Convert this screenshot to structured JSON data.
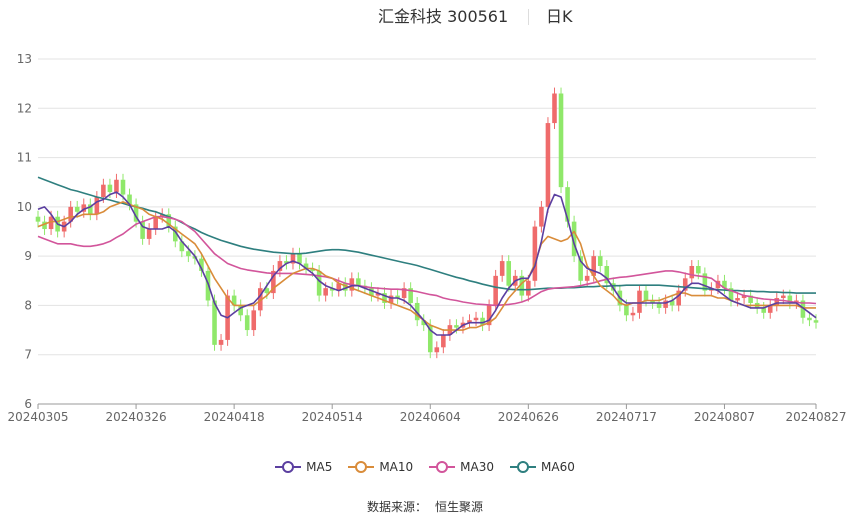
{
  "header": {
    "title": "汇金科技 300561",
    "period": "日K"
  },
  "legend": [
    {
      "label": "MA5",
      "color": "#5b3fa0"
    },
    {
      "label": "MA10",
      "color": "#d98c3a"
    },
    {
      "label": "MA30",
      "color": "#d2559b"
    },
    {
      "label": "MA60",
      "color": "#2e7f7f"
    }
  ],
  "source": {
    "label": "数据来源：",
    "value": "恒生聚源"
  },
  "colors": {
    "up": "#ef6b6b",
    "down": "#8fe86a",
    "grid": "#e3e3e3",
    "axis": "#999999"
  },
  "chart_data": {
    "type": "candlestick",
    "title": "汇金科技 300561",
    "y_range": [
      6,
      13
    ],
    "y_ticks": [
      6,
      7,
      8,
      9,
      10,
      11,
      12,
      13
    ],
    "x_tick_labels": [
      "20240305",
      "20240326",
      "20240418",
      "20240514",
      "20240604",
      "20240626",
      "20240717",
      "20240807",
      "20240827"
    ],
    "x_tick_indices": [
      0,
      15,
      30,
      45,
      60,
      75,
      90,
      105,
      119
    ],
    "close": [
      9.7,
      9.55,
      9.8,
      9.5,
      9.7,
      10.0,
      9.9,
      10.05,
      9.85,
      10.2,
      10.45,
      10.3,
      10.55,
      10.25,
      10.05,
      9.7,
      9.35,
      9.55,
      9.8,
      9.85,
      9.6,
      9.3,
      9.1,
      9.0,
      8.95,
      8.7,
      8.1,
      7.2,
      7.3,
      8.2,
      8.0,
      7.8,
      7.5,
      7.9,
      8.35,
      8.25,
      8.7,
      8.9,
      8.85,
      9.05,
      8.85,
      8.75,
      8.7,
      8.2,
      8.35,
      8.3,
      8.45,
      8.3,
      8.55,
      8.4,
      8.35,
      8.2,
      8.25,
      8.05,
      8.2,
      8.15,
      8.35,
      8.05,
      7.7,
      7.6,
      7.05,
      7.15,
      7.4,
      7.6,
      7.55,
      7.65,
      7.7,
      7.75,
      7.6,
      8.0,
      8.6,
      8.9,
      8.4,
      8.6,
      8.2,
      8.5,
      9.6,
      10.0,
      11.7,
      12.3,
      10.4,
      9.7,
      9.0,
      8.5,
      8.6,
      9.0,
      8.8,
      8.45,
      8.3,
      8.0,
      7.8,
      7.85,
      8.3,
      8.1,
      8.05,
      7.95,
      8.1,
      8.0,
      8.3,
      8.55,
      8.8,
      8.65,
      8.3,
      8.35,
      8.5,
      8.35,
      8.1,
      8.15,
      8.2,
      8.05,
      7.95,
      7.85,
      8.0,
      8.15,
      8.2,
      8.05,
      8.1,
      7.75,
      7.7,
      7.65
    ],
    "ma5": [
      9.95,
      10.0,
      9.85,
      9.65,
      9.6,
      9.7,
      9.85,
      9.95,
      10.0,
      10.1,
      10.15,
      10.25,
      10.3,
      10.2,
      10.05,
      9.8,
      9.6,
      9.55,
      9.55,
      9.55,
      9.6,
      9.5,
      9.3,
      9.15,
      9.0,
      8.75,
      8.45,
      8.05,
      7.8,
      7.75,
      7.85,
      7.95,
      8.0,
      8.05,
      8.2,
      8.4,
      8.6,
      8.75,
      8.85,
      8.9,
      8.85,
      8.75,
      8.65,
      8.5,
      8.4,
      8.35,
      8.3,
      8.35,
      8.4,
      8.4,
      8.35,
      8.3,
      8.25,
      8.2,
      8.15,
      8.15,
      8.1,
      8.0,
      7.85,
      7.7,
      7.5,
      7.4,
      7.4,
      7.4,
      7.5,
      7.6,
      7.65,
      7.65,
      7.65,
      7.7,
      7.9,
      8.15,
      8.35,
      8.5,
      8.55,
      8.55,
      8.8,
      9.3,
      9.95,
      10.25,
      10.2,
      9.75,
      9.25,
      8.9,
      8.75,
      8.7,
      8.65,
      8.55,
      8.35,
      8.15,
      8.05,
      8.05,
      8.05,
      8.05,
      8.05,
      8.05,
      8.05,
      8.1,
      8.2,
      8.35,
      8.45,
      8.45,
      8.4,
      8.35,
      8.3,
      8.2,
      8.1,
      8.05,
      8.0,
      7.95,
      7.95,
      7.95,
      8.0,
      8.05,
      8.05,
      8.05,
      8.05,
      7.95,
      7.85,
      7.75
    ],
    "ma10": [
      9.6,
      9.65,
      9.7,
      9.7,
      9.75,
      9.8,
      9.8,
      9.85,
      9.85,
      9.85,
      9.9,
      10.0,
      10.05,
      10.1,
      10.05,
      10.0,
      9.95,
      9.85,
      9.8,
      9.75,
      9.65,
      9.55,
      9.45,
      9.35,
      9.25,
      9.05,
      8.8,
      8.55,
      8.35,
      8.15,
      8.0,
      8.0,
      8.0,
      8.0,
      8.1,
      8.2,
      8.35,
      8.45,
      8.55,
      8.65,
      8.7,
      8.75,
      8.75,
      8.7,
      8.6,
      8.55,
      8.45,
      8.4,
      8.35,
      8.3,
      8.25,
      8.2,
      8.15,
      8.1,
      8.05,
      8.0,
      7.95,
      7.9,
      7.8,
      7.7,
      7.6,
      7.55,
      7.5,
      7.5,
      7.5,
      7.5,
      7.55,
      7.55,
      7.6,
      7.65,
      7.75,
      7.95,
      8.15,
      8.3,
      8.45,
      8.55,
      8.85,
      9.25,
      9.4,
      9.35,
      9.3,
      9.35,
      9.5,
      9.25,
      8.8,
      8.6,
      8.4,
      8.3,
      8.2,
      8.05,
      8.0,
      8.05,
      8.05,
      8.1,
      8.1,
      8.1,
      8.15,
      8.2,
      8.25,
      8.25,
      8.2,
      8.2,
      8.2,
      8.2,
      8.15,
      8.15,
      8.1,
      8.05,
      8.0,
      8.0,
      8.0,
      8.0,
      8.0,
      8.0,
      8.0,
      8.0,
      8.0,
      7.95,
      7.95,
      7.95
    ],
    "ma30": [
      9.4,
      9.35,
      9.3,
      9.25,
      9.25,
      9.25,
      9.22,
      9.2,
      9.2,
      9.22,
      9.25,
      9.3,
      9.38,
      9.45,
      9.55,
      9.65,
      9.7,
      9.75,
      9.8,
      9.8,
      9.78,
      9.75,
      9.7,
      9.6,
      9.5,
      9.35,
      9.2,
      9.05,
      8.95,
      8.85,
      8.8,
      8.75,
      8.72,
      8.7,
      8.68,
      8.66,
      8.65,
      8.65,
      8.65,
      8.65,
      8.64,
      8.63,
      8.62,
      8.6,
      8.58,
      8.55,
      8.5,
      8.45,
      8.42,
      8.4,
      8.38,
      8.36,
      8.35,
      8.34,
      8.33,
      8.33,
      8.32,
      8.3,
      8.28,
      8.25,
      8.22,
      8.2,
      8.15,
      8.12,
      8.1,
      8.07,
      8.05,
      8.03,
      8.02,
      8.01,
      8.0,
      8.01,
      8.02,
      8.04,
      8.07,
      8.12,
      8.2,
      8.28,
      8.33,
      8.35,
      8.36,
      8.37,
      8.38,
      8.4,
      8.43,
      8.46,
      8.5,
      8.53,
      8.55,
      8.57,
      8.58,
      8.6,
      8.62,
      8.64,
      8.66,
      8.68,
      8.7,
      8.7,
      8.68,
      8.65,
      8.62,
      8.6,
      8.58,
      8.55,
      8.45,
      8.35,
      8.3,
      8.25,
      8.2,
      8.18,
      8.15,
      8.13,
      8.12,
      8.11,
      8.1,
      8.08,
      8.06,
      8.05,
      8.05,
      8.04
    ],
    "ma60": [
      10.6,
      10.55,
      10.5,
      10.45,
      10.4,
      10.35,
      10.32,
      10.28,
      10.24,
      10.2,
      10.17,
      10.14,
      10.1,
      10.07,
      10.03,
      10.0,
      9.97,
      9.93,
      9.9,
      9.85,
      9.8,
      9.75,
      9.68,
      9.61,
      9.55,
      9.48,
      9.42,
      9.37,
      9.32,
      9.28,
      9.24,
      9.2,
      9.17,
      9.14,
      9.12,
      9.1,
      9.08,
      9.07,
      9.06,
      9.05,
      9.05,
      9.06,
      9.08,
      9.1,
      9.12,
      9.13,
      9.13,
      9.12,
      9.1,
      9.08,
      9.05,
      9.02,
      8.99,
      8.96,
      8.93,
      8.9,
      8.87,
      8.84,
      8.81,
      8.77,
      8.73,
      8.69,
      8.65,
      8.61,
      8.57,
      8.54,
      8.5,
      8.47,
      8.43,
      8.4,
      8.37,
      8.35,
      8.33,
      8.32,
      8.32,
      8.32,
      8.33,
      8.34,
      8.35,
      8.35,
      8.35,
      8.36,
      8.36,
      8.37,
      8.38,
      8.38,
      8.39,
      8.39,
      8.4,
      8.4,
      8.41,
      8.41,
      8.41,
      8.41,
      8.41,
      8.41,
      8.4,
      8.39,
      8.38,
      8.37,
      8.36,
      8.35,
      8.34,
      8.33,
      8.32,
      8.31,
      8.3,
      8.3,
      8.29,
      8.29,
      8.28,
      8.28,
      8.27,
      8.27,
      8.26,
      8.26,
      8.25,
      8.25,
      8.25,
      8.25
    ]
  }
}
